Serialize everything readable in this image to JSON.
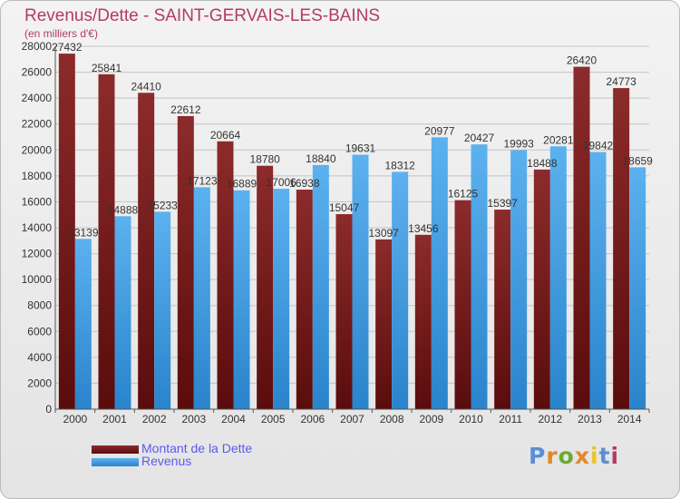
{
  "title": "Revenus/Dette - SAINT-GERVAIS-LES-BAINS",
  "subtitle": "(en milliers d'€)",
  "legend": [
    {
      "label": "Montant de la Dette",
      "color": "#7a1d1d"
    },
    {
      "label": "Revenus",
      "color": "#3d9de6"
    }
  ],
  "logo": {
    "text": "Proxiti",
    "colors": [
      "#5b8ed6",
      "#e0892b",
      "#6aaa34",
      "#e0892b",
      "#e6c62e",
      "#5b8ed6",
      "#b33a6a"
    ]
  },
  "chart_data": {
    "type": "bar",
    "categories": [
      "2000",
      "2001",
      "2002",
      "2003",
      "2004",
      "2005",
      "2006",
      "2007",
      "2008",
      "2009",
      "2010",
      "2011",
      "2012",
      "2013",
      "2014"
    ],
    "series": [
      {
        "name": "Montant de la Dette",
        "color": "#7a1d1d",
        "values": [
          27432,
          25841,
          24410,
          22612,
          20664,
          18780,
          16938,
          15047,
          13097,
          13456,
          16125,
          15397,
          18488,
          26420,
          24773
        ],
        "labels": [
          "27432",
          "25841",
          "24410",
          "22612",
          "20664",
          "18780",
          "16938",
          "15047",
          "13097",
          "13456",
          "16125",
          "15397",
          "18488",
          "26420",
          "24773"
        ]
      },
      {
        "name": "Revenus",
        "color": "#3d9de6",
        "values": [
          13139,
          14888,
          15233,
          17123,
          16889,
          17006,
          18840,
          19631,
          18312,
          20977,
          20427,
          19993,
          20281,
          19842,
          18659
        ],
        "labels": [
          "13139",
          "14888",
          "15233",
          "17123",
          "16889",
          "17006",
          "18840",
          "19631",
          "18312",
          "20977",
          "20427",
          "19993",
          "20281",
          "19842",
          "18659"
        ]
      }
    ],
    "ylim": [
      0,
      28000
    ],
    "yticks": [
      0,
      2000,
      4000,
      6000,
      8000,
      10000,
      12000,
      14000,
      16000,
      18000,
      20000,
      22000,
      24000,
      26000,
      28000
    ],
    "grid": true,
    "legend_position": "bottom-left"
  }
}
